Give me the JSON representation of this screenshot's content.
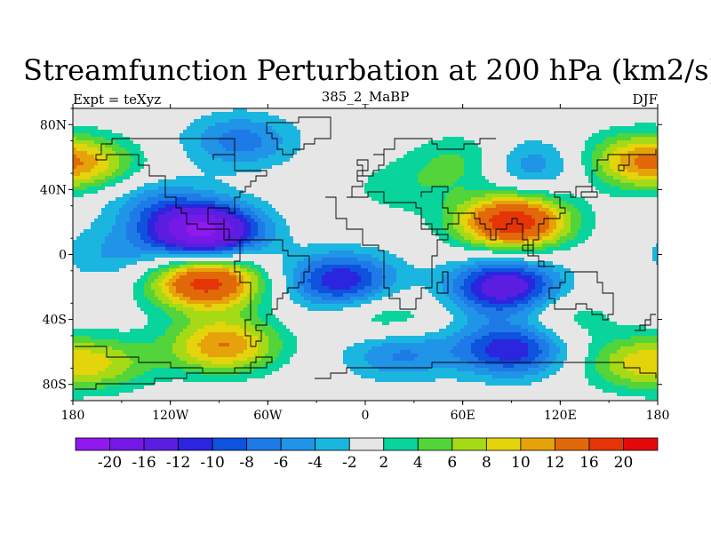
{
  "chart_data": {
    "type": "heatmap",
    "title": "Streamfunction Perturbation at 200 hPa (km2/s)",
    "left_label": "Expt = teXyz",
    "center_label": "385_2_MaBP",
    "right_label": "DJF",
    "xlabel": "",
    "ylabel": "",
    "xlim": [
      -180,
      180
    ],
    "ylim": [
      -90,
      90
    ],
    "x_ticks": [
      {
        "value": -180,
        "label": "180"
      },
      {
        "value": -120,
        "label": "120W"
      },
      {
        "value": -60,
        "label": "60W"
      },
      {
        "value": 0,
        "label": "0"
      },
      {
        "value": 60,
        "label": "60E"
      },
      {
        "value": 120,
        "label": "120E"
      },
      {
        "value": 180,
        "label": "180"
      }
    ],
    "y_ticks": [
      {
        "value": 80,
        "label": "80N"
      },
      {
        "value": 40,
        "label": "40N"
      },
      {
        "value": 0,
        "label": "0"
      },
      {
        "value": -40,
        "label": "40S"
      },
      {
        "value": -80,
        "label": "80S"
      }
    ],
    "colorbar": {
      "labels": [
        "-20",
        "-16",
        "-12",
        "-10",
        "-8",
        "-6",
        "-4",
        "-2",
        "2",
        "4",
        "6",
        "8",
        "10",
        "12",
        "16",
        "20"
      ],
      "colors": [
        "#8f19ee",
        "#7618e6",
        "#5b1ee0",
        "#2b25de",
        "#0e52de",
        "#1e7ae6",
        "#2094e7",
        "#1bb6e0",
        "#e6e6e6",
        "#08d49c",
        "#52d43a",
        "#a6da17",
        "#e4d40c",
        "#e5a20b",
        "#e26909",
        "#e53508",
        "#e20a0a"
      ]
    },
    "features": [
      {
        "lon": -99,
        "lat": 14,
        "value": -21
      },
      {
        "lon": -77,
        "lat": 70,
        "value": -7
      },
      {
        "lon": 91,
        "lat": 20,
        "value": 19
      },
      {
        "lon": 166,
        "lat": 58,
        "value": 9
      },
      {
        "lon": 65,
        "lat": 57,
        "value": 6
      },
      {
        "lon": 97,
        "lat": 55,
        "value": -7
      },
      {
        "lon": 22,
        "lat": 41,
        "value": 3
      },
      {
        "lon": -98,
        "lat": -17,
        "value": 18
      },
      {
        "lon": -87,
        "lat": -56,
        "value": 12
      },
      {
        "lon": -15,
        "lat": -16,
        "value": -12
      },
      {
        "lon": 86,
        "lat": -20,
        "value": -15
      },
      {
        "lon": 90,
        "lat": -58,
        "value": -12
      },
      {
        "lon": 20,
        "lat": -60,
        "value": -7
      },
      {
        "lon": -160,
        "lat": -67,
        "value": 6
      },
      {
        "lon": 165,
        "lat": -67,
        "value": 7
      },
      {
        "lon": 14,
        "lat": -40,
        "value": 5
      },
      {
        "lon": 120,
        "lat": -38,
        "value": 4
      },
      {
        "lon": -168,
        "lat": 55,
        "value": 6
      },
      {
        "lon": -130,
        "lat": 32,
        "value": -5
      },
      {
        "lon": -155,
        "lat": 0,
        "value": -4
      }
    ]
  }
}
